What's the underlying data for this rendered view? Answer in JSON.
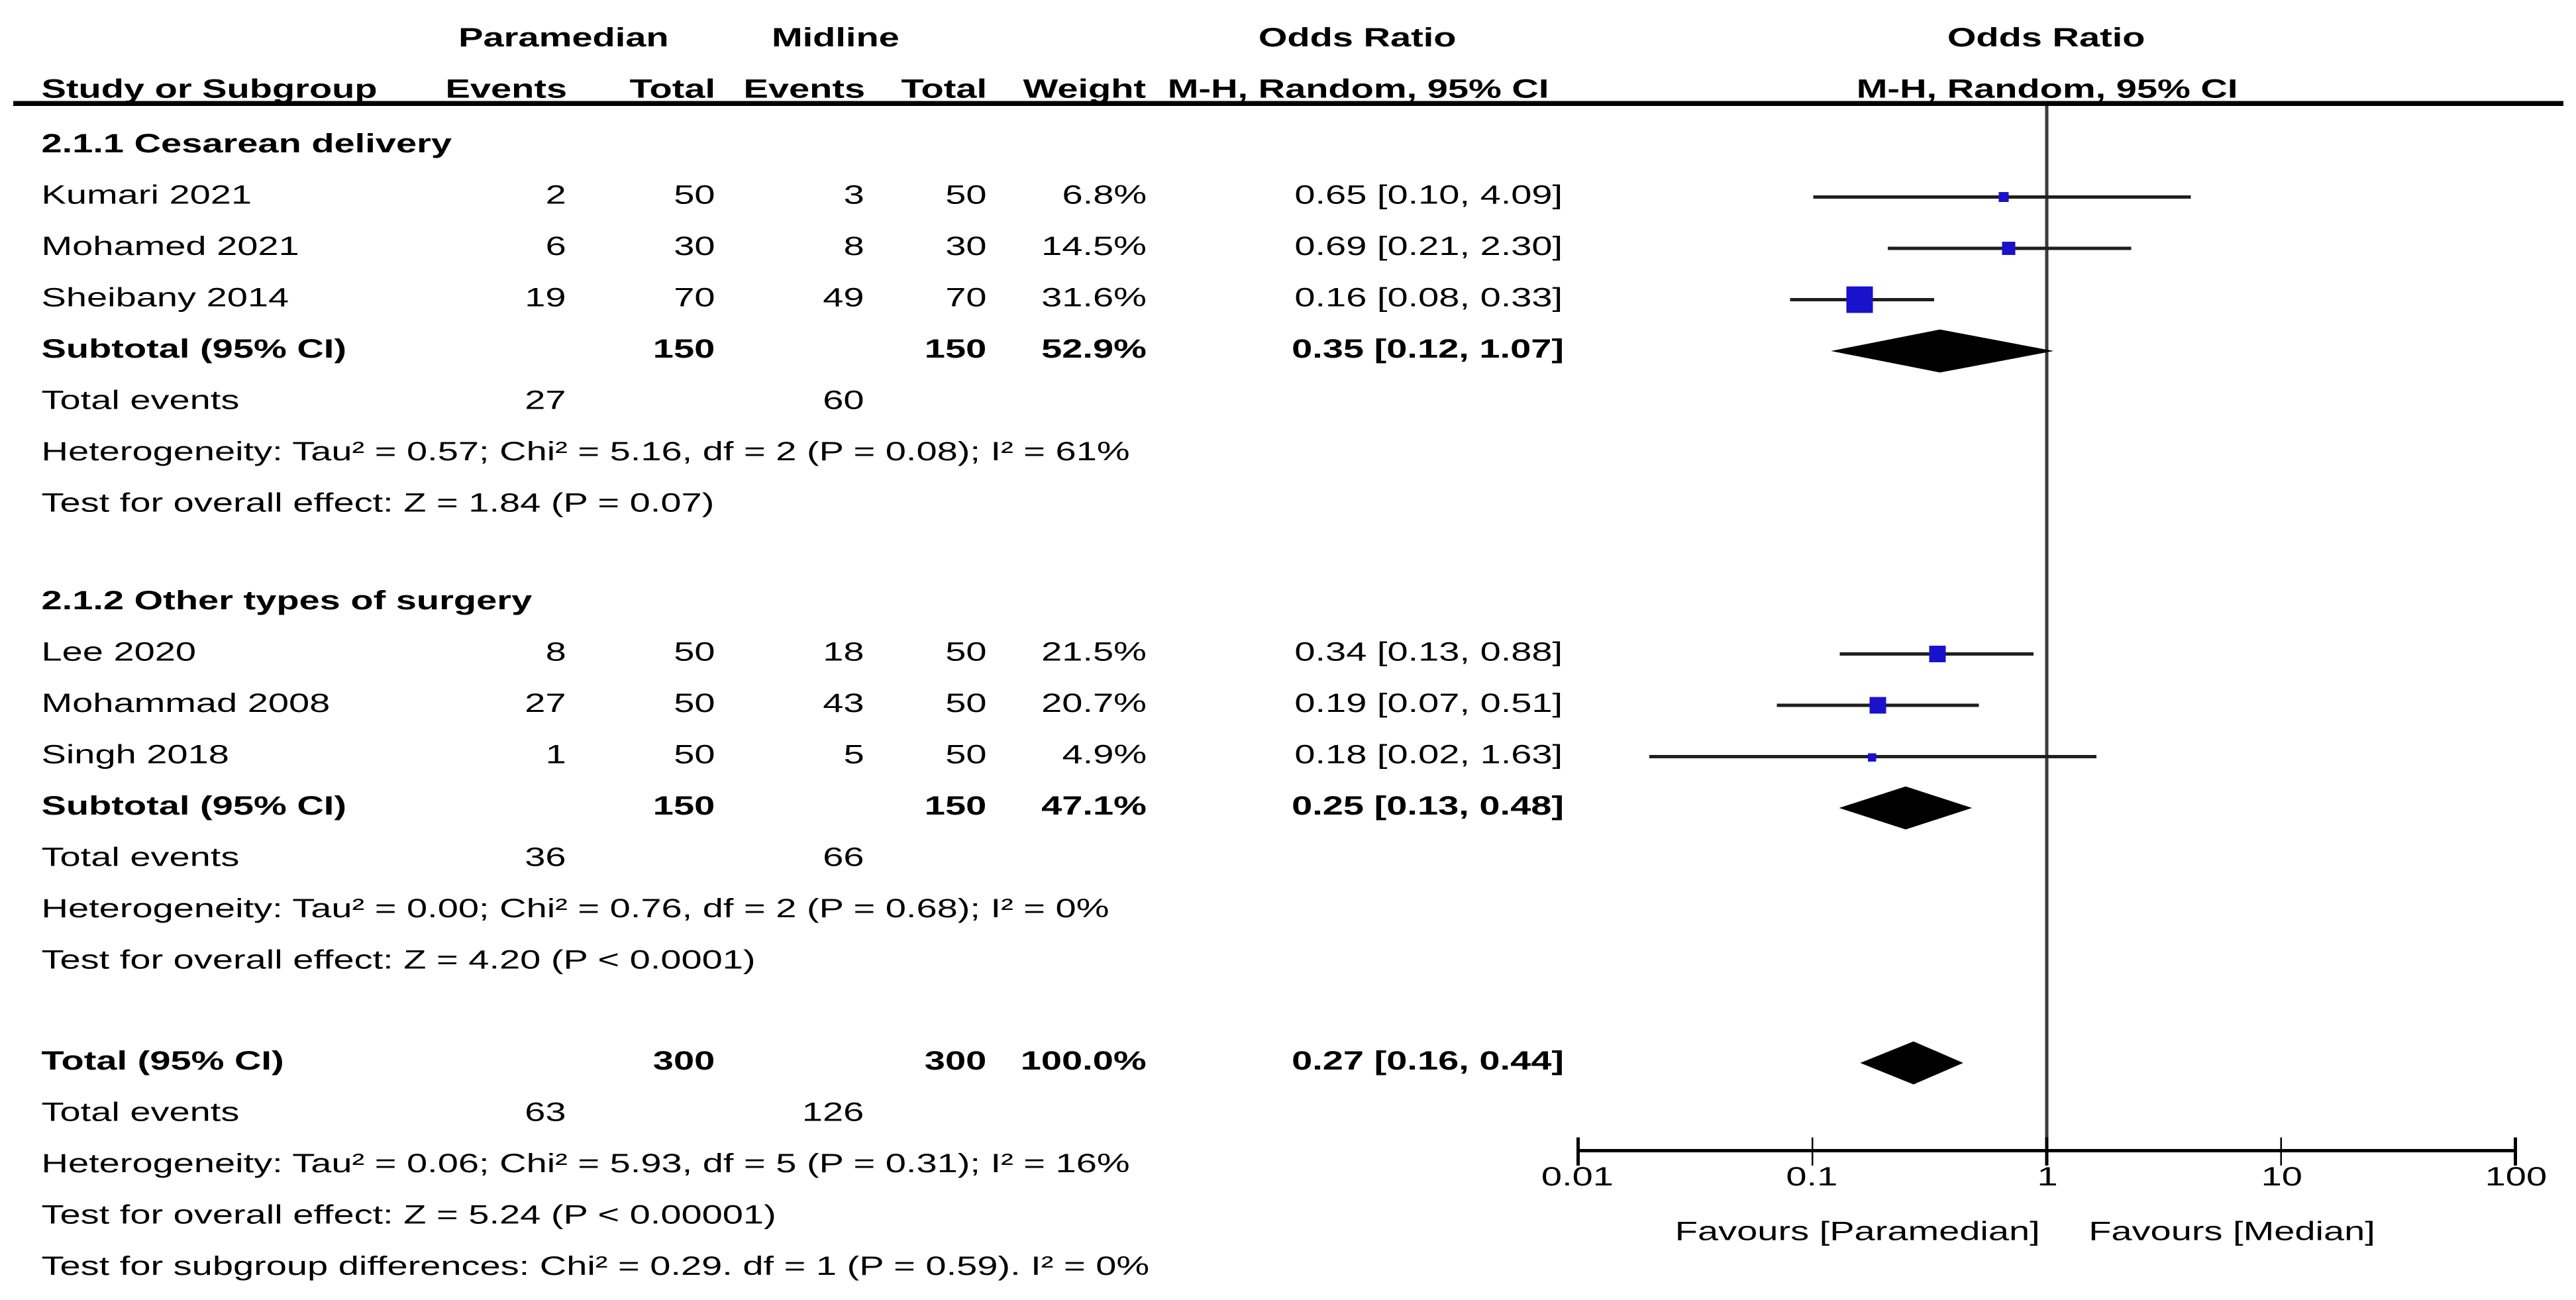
{
  "chart_data": {
    "type": "forest",
    "effect_measure_header": "Odds Ratio",
    "method_header": "M-H, Random, 95% CI",
    "group_headers": {
      "experimental": "Paramedian",
      "control": "Midline"
    },
    "column_headers": {
      "study": "Study or Subgroup",
      "events": "Events",
      "total": "Total",
      "weight": "Weight"
    },
    "axis": {
      "scale": "log10",
      "tick_values": [
        0.01,
        0.1,
        1,
        10,
        100
      ],
      "tick_labels": [
        "0.01",
        "0.1",
        "1",
        "10",
        "100"
      ],
      "favours_left": "Favours [Paramedian]",
      "favours_right": "Favours [Median]"
    },
    "colors": {
      "marker": "#1912cc",
      "diamond": "#000000",
      "text": "#000000"
    },
    "sections": [
      {
        "heading": "2.1.1 Cesarean delivery",
        "studies": [
          {
            "label": "Kumari 2021",
            "e1": "2",
            "t1": "50",
            "e2": "3",
            "t2": "50",
            "weight": "6.8%",
            "ci_text": "0.65 [0.10, 4.09]",
            "or": 0.65,
            "lo": 0.1,
            "hi": 4.09,
            "size": 6
          },
          {
            "label": "Mohamed 2021",
            "e1": "6",
            "t1": "30",
            "e2": "8",
            "t2": "30",
            "weight": "14.5%",
            "ci_text": "0.69 [0.21, 2.30]",
            "or": 0.69,
            "lo": 0.21,
            "hi": 2.3,
            "size": 8
          },
          {
            "label": "Sheibany 2014",
            "e1": "19",
            "t1": "70",
            "e2": "49",
            "t2": "70",
            "weight": "31.6%",
            "ci_text": "0.16 [0.08, 0.33]",
            "or": 0.16,
            "lo": 0.08,
            "hi": 0.33,
            "size": 16
          }
        ],
        "subtotal": {
          "label": "Subtotal (95% CI)",
          "t1": "150",
          "t2": "150",
          "weight": "52.9%",
          "ci_text": "0.35 [0.12, 1.07]",
          "or": 0.35,
          "lo": 0.12,
          "hi": 1.07
        },
        "total_events": {
          "label": "Total events",
          "e1": "27",
          "e2": "60"
        },
        "heterogeneity": "Heterogeneity: Tau² = 0.57; Chi² = 5.16, df = 2 (P = 0.08); I² = 61%",
        "overall_effect": "Test for overall effect: Z = 1.84 (P = 0.07)"
      },
      {
        "heading": "2.1.2 Other types of surgery",
        "studies": [
          {
            "label": "Lee 2020",
            "e1": "8",
            "t1": "50",
            "e2": "18",
            "t2": "50",
            "weight": "21.5%",
            "ci_text": "0.34 [0.13, 0.88]",
            "or": 0.34,
            "lo": 0.13,
            "hi": 0.88,
            "size": 10
          },
          {
            "label": "Mohammad 2008",
            "e1": "27",
            "t1": "50",
            "e2": "43",
            "t2": "50",
            "weight": "20.7%",
            "ci_text": "0.19 [0.07, 0.51]",
            "or": 0.19,
            "lo": 0.07,
            "hi": 0.51,
            "size": 10
          },
          {
            "label": "Singh 2018",
            "e1": "1",
            "t1": "50",
            "e2": "5",
            "t2": "50",
            "weight": "4.9%",
            "ci_text": "0.18 [0.02, 1.63]",
            "or": 0.18,
            "lo": 0.02,
            "hi": 1.63,
            "size": 5
          }
        ],
        "subtotal": {
          "label": "Subtotal (95% CI)",
          "t1": "150",
          "t2": "150",
          "weight": "47.1%",
          "ci_text": "0.25 [0.13, 0.48]",
          "or": 0.25,
          "lo": 0.13,
          "hi": 0.48
        },
        "total_events": {
          "label": "Total events",
          "e1": "36",
          "e2": "66"
        },
        "heterogeneity": "Heterogeneity: Tau² = 0.00; Chi² = 0.76, df = 2 (P = 0.68); I² = 0%",
        "overall_effect": "Test for overall effect: Z = 4.20 (P < 0.0001)"
      }
    ],
    "overall": {
      "row": {
        "label": "Total (95% CI)",
        "t1": "300",
        "t2": "300",
        "weight": "100.0%",
        "ci_text": "0.27 [0.16, 0.44]",
        "or": 0.27,
        "lo": 0.16,
        "hi": 0.44
      },
      "total_events": {
        "label": "Total events",
        "e1": "63",
        "e2": "126"
      },
      "heterogeneity": "Heterogeneity: Tau² = 0.06; Chi² = 5.93, df = 5 (P = 0.31); I² = 16%",
      "overall_effect": "Test for overall effect: Z = 5.24 (P < 0.00001)",
      "subgroup_differences": "Test for subgroup differences: Chi² = 0.29. df = 1 (P = 0.59). I² = 0%"
    }
  }
}
